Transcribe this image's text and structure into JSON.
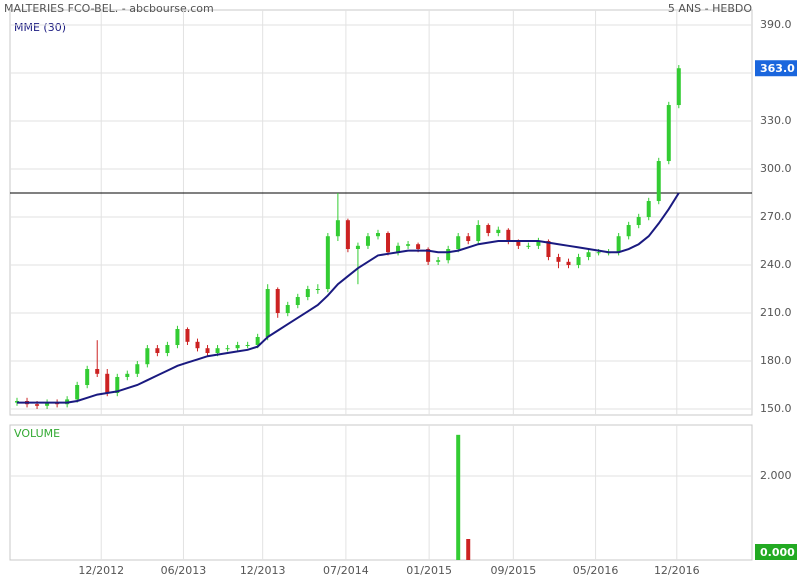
{
  "chart_data": {
    "type": "candlestick",
    "title": "MALTERIES FCO-BEL. - abcbourse.com",
    "subtitle": "5 ANS - HEBDO",
    "indicator_label": "MME (30)",
    "volume_label": "VOLUME",
    "open": [
      154,
      155,
      153,
      152,
      154,
      153,
      156,
      165,
      175,
      172,
      160,
      170,
      172,
      178,
      188,
      185,
      190,
      200,
      192,
      188,
      185,
      188,
      188,
      190,
      190,
      195,
      225,
      210,
      215,
      220,
      225,
      225,
      258,
      268,
      250,
      252,
      258,
      260,
      248,
      252,
      253,
      250,
      242,
      243,
      250,
      258,
      255,
      265,
      260,
      262,
      255,
      252,
      252,
      255,
      245,
      242,
      240,
      245,
      248,
      248,
      248,
      258,
      265,
      270,
      280,
      305,
      340
    ],
    "high": [
      157,
      157,
      155,
      156,
      156,
      158,
      167,
      177,
      193,
      175,
      172,
      174,
      180,
      190,
      190,
      192,
      202,
      201,
      194,
      190,
      190,
      190,
      192,
      192,
      197,
      228,
      226,
      217,
      222,
      227,
      228,
      260,
      285,
      269,
      254,
      260,
      262,
      261,
      254,
      255,
      254,
      251,
      245,
      252,
      260,
      260,
      268,
      266,
      264,
      263,
      256,
      254,
      257,
      256,
      247,
      244,
      247,
      250,
      250,
      250,
      260,
      267,
      272,
      282,
      307,
      342,
      365
    ],
    "low": [
      152,
      151,
      150,
      150,
      151,
      151,
      154,
      163,
      170,
      158,
      158,
      168,
      170,
      176,
      183,
      183,
      188,
      190,
      186,
      183,
      183,
      186,
      186,
      188,
      188,
      193,
      207,
      208,
      213,
      218,
      222,
      223,
      255,
      248,
      228,
      250,
      256,
      246,
      246,
      250,
      248,
      240,
      240,
      241,
      248,
      253,
      253,
      258,
      258,
      253,
      250,
      250,
      250,
      243,
      238,
      238,
      238,
      243,
      246,
      246,
      246,
      256,
      263,
      268,
      278,
      303,
      338
    ],
    "close": [
      155,
      153,
      152,
      154,
      153,
      156,
      165,
      175,
      172,
      160,
      170,
      172,
      178,
      188,
      185,
      190,
      200,
      192,
      188,
      185,
      188,
      188,
      190,
      190,
      195,
      225,
      210,
      215,
      220,
      225,
      225,
      258,
      268,
      250,
      252,
      258,
      260,
      248,
      252,
      253,
      250,
      242,
      243,
      250,
      258,
      255,
      265,
      260,
      262,
      255,
      252,
      252,
      255,
      245,
      242,
      240,
      245,
      248,
      248,
      248,
      258,
      265,
      270,
      280,
      305,
      340,
      363
    ],
    "mme": [
      154,
      154,
      154,
      154,
      154,
      154,
      155,
      157,
      159,
      160,
      161,
      163,
      165,
      168,
      171,
      174,
      177,
      179,
      181,
      183,
      184,
      185,
      186,
      187,
      189,
      195,
      199,
      203,
      207,
      211,
      215,
      221,
      228,
      233,
      238,
      242,
      246,
      247,
      248,
      249,
      249,
      249,
      248,
      248,
      249,
      251,
      253,
      254,
      255,
      255,
      255,
      255,
      255,
      254,
      253,
      252,
      251,
      250,
      249,
      248,
      248,
      250,
      253,
      258,
      266,
      275,
      285
    ],
    "volume": [
      0,
      0,
      0,
      0,
      0,
      0,
      0,
      0,
      0,
      0,
      0,
      0,
      0,
      0,
      0,
      0,
      0,
      0,
      0,
      0,
      0,
      0,
      0,
      0,
      0,
      0,
      0,
      0,
      0,
      0,
      0,
      0,
      0,
      0,
      0,
      0,
      0,
      0,
      0,
      0,
      0,
      0,
      0,
      0,
      2.98,
      0.5,
      0,
      0,
      0,
      0,
      0,
      0,
      0,
      0,
      0,
      0,
      0,
      0,
      0,
      0,
      0,
      0,
      0,
      0,
      0,
      0,
      0
    ],
    "last_price": 363,
    "last_price_label": "363.0",
    "last_volume": 0,
    "last_volume_label": "0.000",
    "resistance": 285,
    "up_color": "#33cc33",
    "down_color": "#cc2222",
    "mme_color": "#1a1a80",
    "xlim": [
      -0.2,
      73.3
    ],
    "xticks": [
      {
        "value": 8.4,
        "label": "12/2012"
      },
      {
        "value": 16.6,
        "label": "06/2013"
      },
      {
        "value": 24.5,
        "label": "12/2013"
      },
      {
        "value": 32.8,
        "label": "07/2014"
      },
      {
        "value": 41.1,
        "label": "01/2015"
      },
      {
        "value": 49.5,
        "label": "09/2015"
      },
      {
        "value": 57.7,
        "label": "05/2016"
      },
      {
        "value": 65.8,
        "label": "12/2016"
      }
    ],
    "ylim": [
      146.25,
      399.4
    ],
    "yticks": [
      {
        "value": 150,
        "label": "150.0"
      },
      {
        "value": 180,
        "label": "180.0"
      },
      {
        "value": 210,
        "label": "210.0"
      },
      {
        "value": 240,
        "label": "240.0"
      },
      {
        "value": 270,
        "label": "270.0"
      },
      {
        "value": 300,
        "label": "300.0"
      },
      {
        "value": 330,
        "label": "330.0"
      },
      {
        "value": 360,
        "label": "360.0"
      },
      {
        "value": 390,
        "label": "390.0"
      }
    ],
    "vlim": [
      0,
      3.214
    ],
    "vticks": [
      {
        "value": 2,
        "label": "2.000"
      }
    ],
    "grid": true
  }
}
